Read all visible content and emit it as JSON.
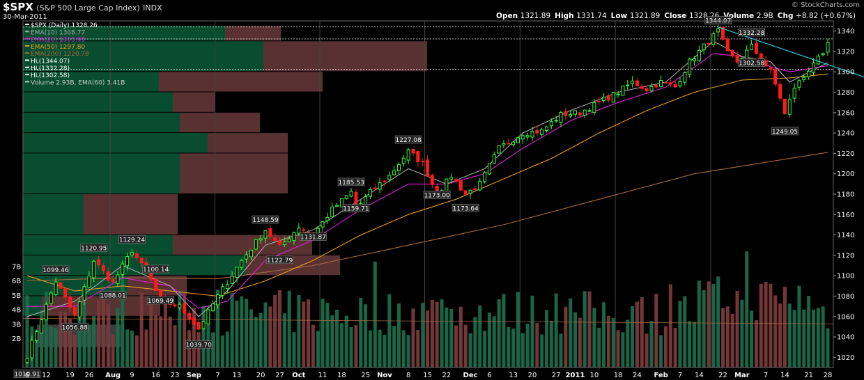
{
  "header": {
    "symbol": "$SPX",
    "description": "(S&P 500 Large Cap Index)",
    "exchange": "INDX",
    "date": "30-Mar-2011",
    "credit": "© StockCharts.com",
    "quote": [
      {
        "label": "Open",
        "value": "1321.89"
      },
      {
        "label": "High",
        "value": "1331.74"
      },
      {
        "label": "Low",
        "value": "1321.89"
      },
      {
        "label": "Close",
        "value": "1328.26"
      },
      {
        "label": "Volume",
        "value": "2.9B"
      },
      {
        "label": "Chg",
        "value": "+8.82 (+0.67%)"
      }
    ]
  },
  "colors": {
    "background": "#000000",
    "up": "#33ff33",
    "down": "#ff1a1a",
    "ema10": "#aaaaaa",
    "ema20": "#e01ee0",
    "ema50": "#e8a020",
    "ema200": "#a86a3c",
    "trendline": "#2ed0e0",
    "volume_up": "#1b6a4a",
    "volume_down": "#7a3a3a",
    "vbp_green": "#0a5a38",
    "vbp_red": "#6a3a3a",
    "hl_line": "#dddddd"
  },
  "chart_data": {
    "type": "candlestick",
    "title": "$SPX (S&P 500 Large Cap Index) INDX",
    "ylim": [
      1010,
      1350
    ],
    "y_ticks": [
      1020,
      1040,
      1060,
      1080,
      1100,
      1120,
      1140,
      1160,
      1180,
      1200,
      1220,
      1240,
      1260,
      1280,
      1300,
      1320,
      1340
    ],
    "volume_ticks": [
      "2B",
      "3B",
      "4B",
      "5B",
      "6B",
      "7B"
    ],
    "x_labels": [
      "6",
      "12",
      "19",
      "26",
      "Aug",
      "9",
      "16",
      "23",
      "Sep",
      "7",
      "13",
      "20",
      "27",
      "Oct",
      "11",
      "18",
      "25",
      "Nov",
      "8",
      "15",
      "22",
      "Dec",
      "6",
      "13",
      "20",
      "27",
      "2011",
      "10",
      "18",
      "24",
      "Feb",
      "7",
      "14",
      "22",
      "Mar",
      "7",
      "14",
      "21",
      "28"
    ],
    "legend": [
      {
        "label": "$SPX (Daily) 1328.26",
        "color": "#ffffff"
      },
      {
        "label": "EMA(10) 1308.77",
        "color": "#aaaaaa"
      },
      {
        "label": "EMA(20) 1305.95",
        "color": "#e01ee0"
      },
      {
        "label": "EMA(50) 1297.80",
        "color": "#e8a020"
      },
      {
        "label": "EMA(200) 1220.78",
        "color": "#a86a3c"
      },
      {
        "label": "HL(1344.07)",
        "color": "#ffffff"
      },
      {
        "label": "HL(1332.28)",
        "color": "#ffffff"
      },
      {
        "label": "HL(1302.58)",
        "color": "#ffffff"
      },
      {
        "label": "Volume 2.93B, EMA(60) 3.41B",
        "color": "#cccccc"
      }
    ],
    "horizontal_lines": [
      1344.07,
      1332.28,
      1302.58
    ],
    "annotations": [
      {
        "text": "1010.91",
        "x_index": 0,
        "price": 1010.91
      },
      {
        "text": "1099.46",
        "x_index": 6,
        "price": 1099.46
      },
      {
        "text": "1056.88",
        "x_index": 10,
        "price": 1056.88
      },
      {
        "text": "1120.95",
        "x_index": 14,
        "price": 1120.95
      },
      {
        "text": "1088.01",
        "x_index": 18,
        "price": 1088.01
      },
      {
        "text": "1129.24",
        "x_index": 22,
        "price": 1129.24
      },
      {
        "text": "1100.14",
        "x_index": 27,
        "price": 1100.14
      },
      {
        "text": "1069.49",
        "x_index": 28,
        "price": 1069.49
      },
      {
        "text": "1039.70",
        "x_index": 36,
        "price": 1039.7
      },
      {
        "text": "1148.59",
        "x_index": 50,
        "price": 1148.59
      },
      {
        "text": "1122.79",
        "x_index": 53,
        "price": 1122.79
      },
      {
        "text": "1131.87",
        "x_index": 60,
        "price": 1131.87
      },
      {
        "text": "1185.53",
        "x_index": 68,
        "price": 1185.53
      },
      {
        "text": "1159.71",
        "x_index": 69,
        "price": 1159.71
      },
      {
        "text": "1227.08",
        "x_index": 80,
        "price": 1227.08
      },
      {
        "text": "1173.00",
        "x_index": 86,
        "price": 1173.0
      },
      {
        "text": "1173.64",
        "x_index": 92,
        "price": 1173.64
      },
      {
        "text": "1344.07",
        "x_index": 145,
        "price": 1344.07
      },
      {
        "text": "1332.28",
        "x_index": 152,
        "price": 1332.28
      },
      {
        "text": "1302.58",
        "x_index": 152,
        "price": 1302.58
      },
      {
        "text": "1249.05",
        "x_index": 159,
        "price": 1249.05
      }
    ],
    "key_points": [
      {
        "index": 0,
        "close": 1022
      },
      {
        "index": 6,
        "close": 1095
      },
      {
        "index": 10,
        "close": 1060
      },
      {
        "index": 14,
        "close": 1115
      },
      {
        "index": 18,
        "close": 1093
      },
      {
        "index": 22,
        "close": 1125
      },
      {
        "index": 26,
        "close": 1095
      },
      {
        "index": 28,
        "close": 1075
      },
      {
        "index": 32,
        "close": 1070
      },
      {
        "index": 36,
        "close": 1048
      },
      {
        "index": 40,
        "close": 1080
      },
      {
        "index": 45,
        "close": 1115
      },
      {
        "index": 50,
        "close": 1145
      },
      {
        "index": 53,
        "close": 1128
      },
      {
        "index": 57,
        "close": 1148
      },
      {
        "index": 60,
        "close": 1140
      },
      {
        "index": 64,
        "close": 1165
      },
      {
        "index": 68,
        "close": 1182
      },
      {
        "index": 69,
        "close": 1165
      },
      {
        "index": 72,
        "close": 1182
      },
      {
        "index": 76,
        "close": 1198
      },
      {
        "index": 80,
        "close": 1222
      },
      {
        "index": 83,
        "close": 1210
      },
      {
        "index": 86,
        "close": 1180
      },
      {
        "index": 89,
        "close": 1198
      },
      {
        "index": 92,
        "close": 1180
      },
      {
        "index": 95,
        "close": 1190
      },
      {
        "index": 99,
        "close": 1225
      },
      {
        "index": 104,
        "close": 1240
      },
      {
        "index": 108,
        "close": 1242
      },
      {
        "index": 112,
        "close": 1258
      },
      {
        "index": 116,
        "close": 1260
      },
      {
        "index": 120,
        "close": 1270
      },
      {
        "index": 124,
        "close": 1280
      },
      {
        "index": 127,
        "close": 1290
      },
      {
        "index": 130,
        "close": 1283
      },
      {
        "index": 133,
        "close": 1290
      },
      {
        "index": 136,
        "close": 1285
      },
      {
        "index": 139,
        "close": 1310
      },
      {
        "index": 142,
        "close": 1325
      },
      {
        "index": 145,
        "close": 1340
      },
      {
        "index": 147,
        "close": 1318
      },
      {
        "index": 149,
        "close": 1310
      },
      {
        "index": 152,
        "close": 1325
      },
      {
        "index": 154,
        "close": 1312
      },
      {
        "index": 156,
        "close": 1300
      },
      {
        "index": 158,
        "close": 1275
      },
      {
        "index": 159,
        "close": 1258
      },
      {
        "index": 161,
        "close": 1285
      },
      {
        "index": 163,
        "close": 1295
      },
      {
        "index": 165,
        "close": 1310
      },
      {
        "index": 167,
        "close": 1315
      },
      {
        "index": 168,
        "close": 1328.26
      }
    ],
    "ema_series": {
      "ema10": [
        [
          0,
          1060
        ],
        [
          10,
          1075
        ],
        [
          20,
          1110
        ],
        [
          30,
          1090
        ],
        [
          36,
          1060
        ],
        [
          42,
          1085
        ],
        [
          50,
          1130
        ],
        [
          60,
          1145
        ],
        [
          70,
          1175
        ],
        [
          80,
          1205
        ],
        [
          88,
          1190
        ],
        [
          96,
          1205
        ],
        [
          104,
          1240
        ],
        [
          114,
          1262
        ],
        [
          124,
          1280
        ],
        [
          134,
          1290
        ],
        [
          144,
          1330
        ],
        [
          150,
          1315
        ],
        [
          156,
          1310
        ],
        [
          160,
          1290
        ],
        [
          168,
          1309
        ]
      ],
      "ema20": [
        [
          0,
          1070
        ],
        [
          10,
          1070
        ],
        [
          20,
          1098
        ],
        [
          30,
          1090
        ],
        [
          36,
          1068
        ],
        [
          42,
          1075
        ],
        [
          50,
          1115
        ],
        [
          60,
          1135
        ],
        [
          70,
          1165
        ],
        [
          80,
          1190
        ],
        [
          88,
          1190
        ],
        [
          96,
          1200
        ],
        [
          104,
          1225
        ],
        [
          114,
          1252
        ],
        [
          124,
          1270
        ],
        [
          134,
          1285
        ],
        [
          144,
          1318
        ],
        [
          150,
          1315
        ],
        [
          156,
          1305
        ],
        [
          160,
          1300
        ],
        [
          168,
          1306
        ]
      ],
      "ema50": [
        [
          0,
          1100
        ],
        [
          10,
          1085
        ],
        [
          20,
          1090
        ],
        [
          30,
          1085
        ],
        [
          40,
          1080
        ],
        [
          50,
          1095
        ],
        [
          60,
          1115
        ],
        [
          70,
          1140
        ],
        [
          80,
          1160
        ],
        [
          90,
          1175
        ],
        [
          100,
          1195
        ],
        [
          110,
          1215
        ],
        [
          120,
          1240
        ],
        [
          130,
          1262
        ],
        [
          140,
          1280
        ],
        [
          150,
          1292
        ],
        [
          160,
          1294
        ],
        [
          168,
          1298
        ]
      ],
      "ema200": [
        [
          0,
          1095
        ],
        [
          20,
          1098
        ],
        [
          40,
          1097
        ],
        [
          60,
          1110
        ],
        [
          80,
          1130
        ],
        [
          100,
          1150
        ],
        [
          120,
          1175
        ],
        [
          140,
          1200
        ],
        [
          160,
          1215
        ],
        [
          168,
          1221
        ]
      ]
    },
    "volume_ema60": 3.41
  }
}
